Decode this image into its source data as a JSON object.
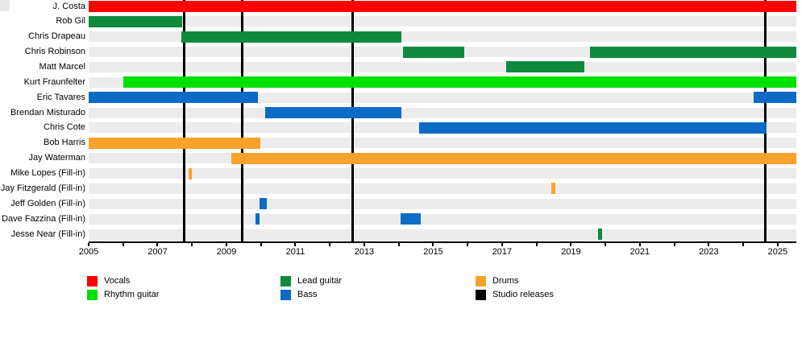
{
  "chart_data": {
    "type": "bar",
    "subtype": "band-member-timeline",
    "title": "",
    "x_axis": {
      "min_year": 2005,
      "max_year_edge": 2025.54,
      "tick_years": [
        2005,
        2006,
        2007,
        2008,
        2009,
        2010,
        2011,
        2012,
        2013,
        2014,
        2015,
        2016,
        2017,
        2018,
        2019,
        2020,
        2021,
        2022,
        2023,
        2024,
        2025
      ],
      "labels": [
        {
          "year": 2005,
          "text": "2005"
        },
        {
          "year": 2007,
          "text": "2007"
        },
        {
          "year": 2009,
          "text": "2009"
        },
        {
          "year": 2011,
          "text": "2011"
        },
        {
          "year": 2013,
          "text": "2013"
        },
        {
          "year": 2015,
          "text": "2015"
        },
        {
          "year": 2017,
          "text": "2017"
        },
        {
          "year": 2019,
          "text": "2019"
        },
        {
          "year": 2021,
          "text": "2021"
        },
        {
          "year": 2023,
          "text": "2023"
        },
        {
          "year": 2025,
          "text": "2025"
        }
      ]
    },
    "roles": {
      "vocals": {
        "label": "Vocals",
        "color": "#ff0000"
      },
      "rhythm": {
        "label": "Rhythm guitar",
        "color": "#00e000"
      },
      "lead": {
        "label": "Lead guitar",
        "color": "#0f8a3d"
      },
      "bass": {
        "label": "Bass",
        "color": "#0c6bc4"
      },
      "drums": {
        "label": "Drums",
        "color": "#faa22b"
      },
      "releases": {
        "label": "Studio releases",
        "color": "#000000"
      }
    },
    "legend": [
      {
        "role": "vocals",
        "col": 0,
        "row": 0
      },
      {
        "role": "rhythm",
        "col": 0,
        "row": 1
      },
      {
        "role": "lead",
        "col": 1,
        "row": 0
      },
      {
        "role": "bass",
        "col": 1,
        "row": 1
      },
      {
        "role": "drums",
        "col": 2,
        "row": 0
      },
      {
        "role": "releases",
        "col": 2,
        "row": 1
      }
    ],
    "members": [
      {
        "name": "J. Costa",
        "segments": [
          {
            "role": "vocals",
            "start": 2005.0,
            "end": 2025.54
          }
        ]
      },
      {
        "name": "Rob Gil",
        "segments": [
          {
            "role": "lead",
            "start": 2005.0,
            "end": 2007.72
          }
        ]
      },
      {
        "name": "Chris Drapeau",
        "segments": [
          {
            "role": "lead",
            "start": 2007.68,
            "end": 2014.07
          }
        ]
      },
      {
        "name": "Chris Robinson",
        "segments": [
          {
            "role": "lead",
            "start": 2014.12,
            "end": 2015.9
          },
          {
            "role": "lead",
            "start": 2019.55,
            "end": 2025.54
          }
        ]
      },
      {
        "name": "Matt Marcel",
        "segments": [
          {
            "role": "lead",
            "start": 2017.11,
            "end": 2019.38
          }
        ]
      },
      {
        "name": "Kurt Fraunfelter",
        "segments": [
          {
            "role": "rhythm",
            "start": 2006.0,
            "end": 2025.54
          }
        ]
      },
      {
        "name": "Eric Tavares",
        "segments": [
          {
            "role": "bass",
            "start": 2005.0,
            "end": 2009.92
          },
          {
            "role": "bass",
            "start": 2024.3,
            "end": 2025.54
          }
        ]
      },
      {
        "name": "Brendan Misturado",
        "segments": [
          {
            "role": "bass",
            "start": 2010.13,
            "end": 2014.07
          }
        ]
      },
      {
        "name": "Chris Cote",
        "segments": [
          {
            "role": "bass",
            "start": 2014.58,
            "end": 2024.68
          }
        ]
      },
      {
        "name": "Bob Harris",
        "segments": [
          {
            "role": "drums",
            "start": 2005.0,
            "end": 2009.99
          }
        ]
      },
      {
        "name": "Jay Waterman",
        "segments": [
          {
            "role": "drums",
            "start": 2009.13,
            "end": 2025.54
          }
        ]
      },
      {
        "name": "Mike Lopes (Fill-in)",
        "segments": [
          {
            "role": "drums",
            "start": 2007.89,
            "end": 2007.98
          }
        ]
      },
      {
        "name": "Jay Fitzgerald (Fill-in)",
        "segments": [
          {
            "role": "drums",
            "start": 2018.42,
            "end": 2018.54
          }
        ]
      },
      {
        "name": "Jeff Golden (Fill-in)",
        "segments": [
          {
            "role": "bass",
            "start": 2009.95,
            "end": 2010.16
          }
        ]
      },
      {
        "name": "Dave Fazzina (Fill-in)",
        "segments": [
          {
            "role": "bass",
            "start": 2009.85,
            "end": 2009.97
          },
          {
            "role": "bass",
            "start": 2014.05,
            "end": 2014.63
          }
        ]
      },
      {
        "name": "Jesse Near (Fill-in)",
        "segments": [
          {
            "role": "lead",
            "start": 2019.78,
            "end": 2019.9
          }
        ]
      }
    ],
    "studio_releases": [
      2007.77,
      2009.46,
      2012.66,
      2024.65
    ],
    "grid": false,
    "legend_position": "bottom"
  },
  "style": {
    "row_band_color": "#ececec",
    "background": "#ffffff",
    "axis_color": "#000000"
  }
}
